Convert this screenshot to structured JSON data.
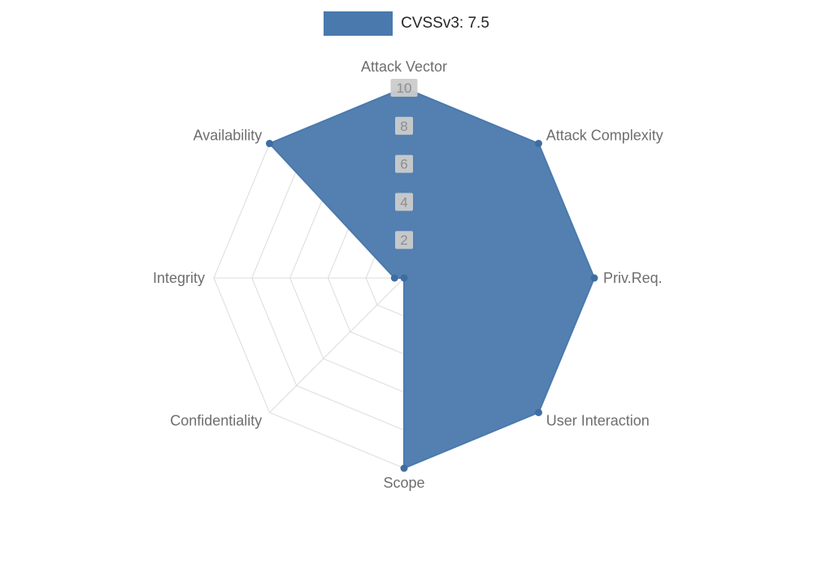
{
  "legend": {
    "label": "CVSSv3: 7.5",
    "color": "#4a79ad"
  },
  "chart_data": {
    "type": "radar",
    "title": "",
    "categories": [
      "Attack Vector",
      "Attack Complexity",
      "Priv.Req.",
      "User Interaction",
      "Scope",
      "Confidentiality",
      "Integrity",
      "Availability"
    ],
    "series": [
      {
        "name": "CVSSv3: 7.5",
        "values": [
          10,
          10,
          10,
          10,
          10,
          0,
          0.5,
          10
        ]
      }
    ],
    "ticks": [
      2,
      4,
      6,
      8,
      10
    ],
    "rlim": [
      0,
      10
    ],
    "grid": true,
    "legend_position": "top",
    "colors": {
      "fill": "#4a79ad",
      "stroke": "#4a79ad",
      "point": "#3f6da0",
      "grid": "#dcdcdc",
      "tick_text": "#8d8d8d",
      "tick_backdrop": "#cbcbcb",
      "label_text": "#6e6e6e"
    }
  }
}
